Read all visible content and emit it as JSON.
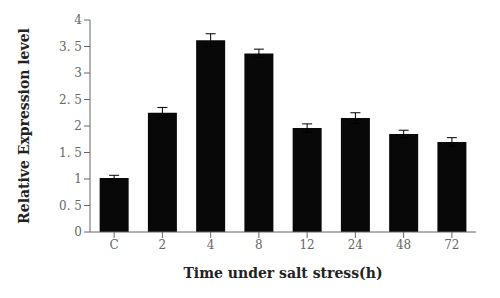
{
  "chart_data": {
    "type": "bar",
    "categories": [
      "C",
      "2",
      "4",
      "8",
      "12",
      "24",
      "48",
      "72"
    ],
    "values": [
      1.02,
      2.25,
      3.62,
      3.37,
      1.96,
      2.15,
      1.85,
      1.7
    ],
    "errors": [
      0.05,
      0.1,
      0.12,
      0.08,
      0.08,
      0.1,
      0.07,
      0.08
    ],
    "color": "#080808",
    "xlabel": "Time under salt stress(h)",
    "ylabel": "Relative Expression level",
    "ylim": [
      0,
      4.0
    ],
    "yticks": [
      0,
      {
        "value": 0.5,
        "label": "0. 5"
      },
      1,
      {
        "value": 1.5,
        "label": "1. 5"
      },
      2,
      {
        "value": 2.5,
        "label": "2. 5"
      },
      3,
      {
        "value": 3.5,
        "label": "3. 5"
      },
      4
    ],
    "grid": false
  }
}
